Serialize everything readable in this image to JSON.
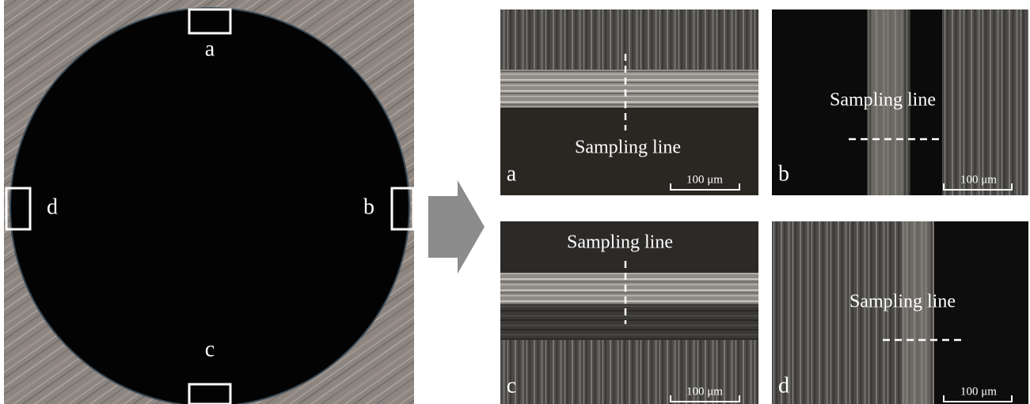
{
  "source_image": {
    "region_labels": [
      "a",
      "b",
      "c",
      "d"
    ]
  },
  "panels": [
    {
      "label": "a",
      "annotation": "Sampling line",
      "scale_bar": "100 μm"
    },
    {
      "label": "b",
      "annotation": "Sampling line",
      "scale_bar": "100 μm"
    },
    {
      "label": "c",
      "annotation": "Sampling line",
      "scale_bar": "100 μm"
    },
    {
      "label": "d",
      "annotation": "Sampling line",
      "scale_bar": "100 μm"
    }
  ]
}
